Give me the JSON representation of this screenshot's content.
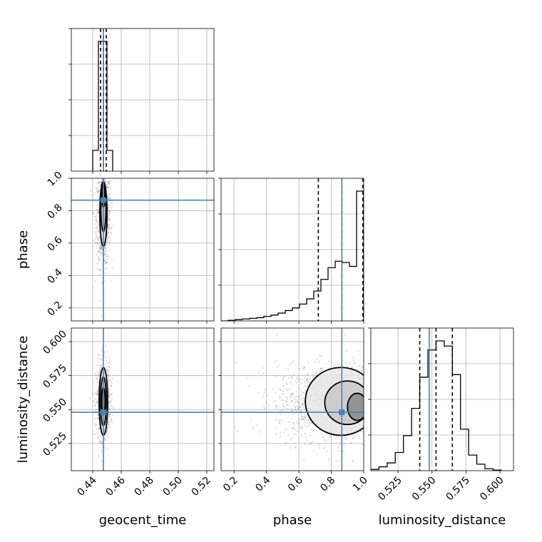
{
  "chart_data": {
    "type": "corner",
    "parameters": [
      "geocent_time",
      "phase",
      "luminosity_distance"
    ],
    "axis_labels": {
      "geocent_time": "geocent_time",
      "phase": "phase",
      "luminosity_distance": "luminosity_distance"
    },
    "ranges": {
      "geocent_time": [
        0.425,
        0.525
      ],
      "phase": [
        0.12,
        1.0
      ],
      "luminosity_distance": [
        0.505,
        0.61
      ]
    },
    "ticks": {
      "geocent_time": [
        "0.44",
        "0.46",
        "0.48",
        "0.50",
        "0.52"
      ],
      "phase": [
        "0.2",
        "0.4",
        "0.6",
        "0.8",
        "1.0"
      ],
      "luminosity_distance": [
        "0.525",
        "0.550",
        "0.575",
        "0.600"
      ]
    },
    "truths": {
      "geocent_time": 0.4475,
      "phase": 0.865,
      "luminosity_distance": 0.548
    },
    "quantiles": {
      "geocent_time": [
        0.4455,
        0.4475,
        0.4495
      ],
      "phase": [
        0.72,
        0.865,
        0.995
      ],
      "luminosity_distance": [
        0.541,
        0.553,
        0.565
      ]
    },
    "histograms": {
      "geocent_time": {
        "edges": [
          0.44,
          0.444,
          0.45,
          0.454
        ],
        "counts": [
          0.16,
          1.0,
          0.16
        ]
      },
      "phase": {
        "edges": [
          0.12,
          0.164,
          0.208,
          0.252,
          0.296,
          0.34,
          0.384,
          0.428,
          0.472,
          0.516,
          0.56,
          0.604,
          0.648,
          0.692,
          0.736,
          0.78,
          0.824,
          0.868,
          0.912,
          0.956,
          1.0
        ],
        "counts": [
          0,
          0.005,
          0.01,
          0.015,
          0.02,
          0.025,
          0.035,
          0.045,
          0.06,
          0.08,
          0.1,
          0.13,
          0.17,
          0.23,
          0.32,
          0.41,
          0.46,
          0.45,
          0.42,
          1.0
        ]
      },
      "luminosity_distance": {
        "edges": [
          0.505,
          0.511,
          0.517,
          0.523,
          0.529,
          0.535,
          0.541,
          0.547,
          0.553,
          0.559,
          0.565,
          0.571,
          0.577,
          0.583,
          0.589,
          0.595,
          0.601
        ],
        "counts": [
          0.01,
          0.03,
          0.06,
          0.14,
          0.27,
          0.48,
          0.72,
          0.93,
          1.0,
          0.96,
          0.74,
          0.32,
          0.12,
          0.05,
          0.015,
          0.005
        ]
      }
    },
    "contours": {
      "phase_vs_geocent_time": [
        {
          "cx": 0.4475,
          "cy": 0.78,
          "rx": 0.0025,
          "ry": 0.2
        },
        {
          "cx": 0.4475,
          "cy": 0.82,
          "rx": 0.0018,
          "ry": 0.15
        },
        {
          "cx": 0.4475,
          "cy": 0.9,
          "rx": 0.001,
          "ry": 0.08
        }
      ],
      "luminosity_distance_vs_geocent_time": [
        {
          "cx": 0.4475,
          "cy": 0.556,
          "rx": 0.003,
          "ry": 0.025
        },
        {
          "cx": 0.4475,
          "cy": 0.556,
          "rx": 0.002,
          "ry": 0.018
        },
        {
          "cx": 0.4475,
          "cy": 0.556,
          "rx": 0.0012,
          "ry": 0.01
        }
      ],
      "luminosity_distance_vs_phase": [
        {
          "cx": 0.86,
          "cy": 0.556,
          "rx": 0.22,
          "ry": 0.025
        },
        {
          "cx": 0.9,
          "cy": 0.555,
          "rx": 0.14,
          "ry": 0.016
        },
        {
          "cx": 0.96,
          "cy": 0.552,
          "rx": 0.06,
          "ry": 0.01
        }
      ]
    },
    "sample_clouds": {
      "phase_vs_geocent_time": {
        "mean": [
          0.4475,
          0.75
        ],
        "sd": [
          0.0025,
          0.15
        ],
        "n": 700
      },
      "luminosity_distance_vs_geocent_time": {
        "mean": [
          0.4475,
          0.556
        ],
        "sd": [
          0.0025,
          0.014
        ],
        "n": 700
      },
      "luminosity_distance_vs_phase": {
        "mean": [
          0.82,
          0.555
        ],
        "sd": [
          0.18,
          0.014
        ],
        "n": 1400
      }
    }
  }
}
